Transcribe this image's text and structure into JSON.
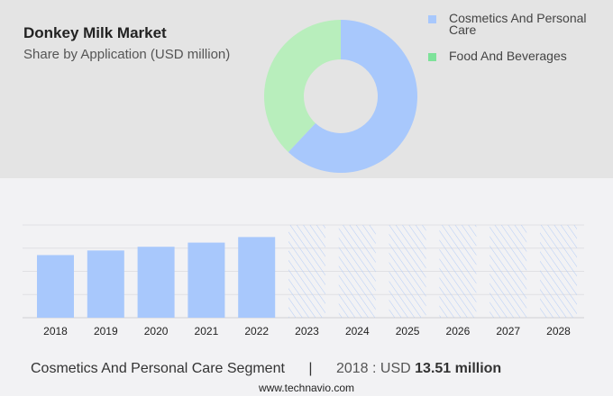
{
  "chart_data": [
    {
      "type": "pie",
      "title": "Donkey Milk Market",
      "subtitle": "Share by Application (USD million)",
      "donut": true,
      "legend_position": "top-right",
      "slices": [
        {
          "name": "Cosmetics And Personal Care",
          "value": 62,
          "color": "#a8c8fc"
        },
        {
          "name": "Food And Beverages",
          "value": 38,
          "color": "#b8eebc",
          "legend_color": "#7ee29a"
        }
      ]
    },
    {
      "type": "bar",
      "categories": [
        "2018",
        "2019",
        "2020",
        "2021",
        "2022",
        "2023",
        "2024",
        "2025",
        "2026",
        "2027",
        "2028"
      ],
      "values": [
        13.51,
        14.5,
        15.3,
        16.2,
        17.4,
        null,
        null,
        null,
        null,
        null,
        null
      ],
      "forecast_years": [
        "2023",
        "2024",
        "2025",
        "2026",
        "2027",
        "2028"
      ],
      "ylim": [
        0,
        20
      ],
      "grid": true,
      "bar_color": "#a8c8fc"
    }
  ],
  "footer": {
    "segment": "Cosmetics And Personal Care Segment",
    "separator": "|",
    "year_label": "2018 : USD",
    "value": "13.51 million"
  },
  "url": "www.technavio.com"
}
